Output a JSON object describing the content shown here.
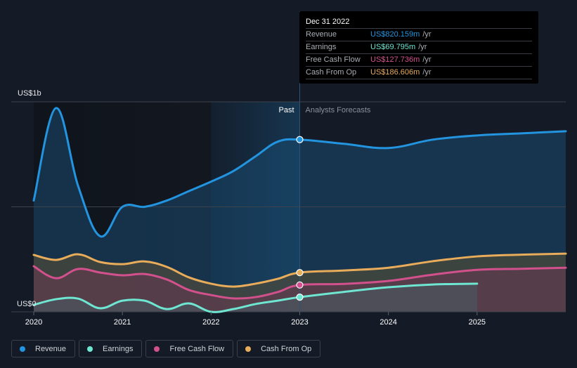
{
  "tooltip": {
    "date": "Dec 31 2022",
    "rows": [
      {
        "label": "Revenue",
        "value": "US$820.159m",
        "unit": "/yr",
        "color": "#2394df"
      },
      {
        "label": "Earnings",
        "value": "US$69.795m",
        "unit": "/yr",
        "color": "#6ee6d2"
      },
      {
        "label": "Free Cash Flow",
        "value": "US$127.736m",
        "unit": "/yr",
        "color": "#d2518c"
      },
      {
        "label": "Cash From Op",
        "value": "US$186.606m",
        "unit": "/yr",
        "color": "#e8ac5a"
      }
    ]
  },
  "legend": [
    {
      "label": "Revenue",
      "color": "#2394df"
    },
    {
      "label": "Earnings",
      "color": "#6ee6d2"
    },
    {
      "label": "Free Cash Flow",
      "color": "#d2518c"
    },
    {
      "label": "Cash From Op",
      "color": "#e8ac5a"
    }
  ],
  "chart_data": {
    "type": "area",
    "title": "",
    "xlabel": "",
    "ylabel": "",
    "y_tick_labels": {
      "top": "US$1b",
      "bottom": "US$0"
    },
    "ylim": [
      0,
      1000
    ],
    "y_unit": "US$m",
    "xlim": [
      2020,
      2026
    ],
    "x_ticks": [
      2020,
      2021,
      2022,
      2023,
      2024,
      2025
    ],
    "x_tick_labels": [
      "2020",
      "2021",
      "2022",
      "2023",
      "2024",
      "2025"
    ],
    "grid": true,
    "divider_x": 2023,
    "highlight_range": [
      2022,
      2023
    ],
    "region_labels": {
      "past": "Past",
      "forecast": "Analysts Forecasts"
    },
    "legend_position": "bottom-left",
    "series": [
      {
        "name": "Revenue",
        "color": "#2394df",
        "x": [
          2020,
          2020.25,
          2020.5,
          2020.75,
          2021,
          2021.25,
          2021.5,
          2021.75,
          2022,
          2022.25,
          2022.5,
          2022.75,
          2023,
          2023.5,
          2024,
          2024.5,
          2025,
          2025.5,
          2026
        ],
        "y": [
          530,
          970,
          600,
          360,
          500,
          500,
          530,
          575,
          620,
          670,
          740,
          810,
          820,
          800,
          780,
          820,
          840,
          850,
          860
        ]
      },
      {
        "name": "Earnings",
        "color": "#6ee6d2",
        "x": [
          2020,
          2020.25,
          2020.5,
          2020.75,
          2021,
          2021.25,
          2021.5,
          2021.75,
          2022,
          2022.25,
          2022.5,
          2022.75,
          2023,
          2023.5,
          2024,
          2024.5,
          2025
        ],
        "y": [
          33,
          60,
          63,
          17,
          53,
          53,
          13,
          40,
          0,
          13,
          37,
          53,
          70,
          95,
          117,
          130,
          134
        ]
      },
      {
        "name": "Free Cash Flow",
        "color": "#d2518c",
        "x": [
          2020,
          2020.25,
          2020.5,
          2020.75,
          2021,
          2021.25,
          2021.5,
          2021.75,
          2022,
          2022.25,
          2022.5,
          2022.75,
          2023,
          2023.5,
          2024,
          2024.5,
          2025,
          2025.5,
          2026
        ],
        "y": [
          217,
          160,
          204,
          187,
          174,
          180,
          154,
          104,
          80,
          64,
          70,
          94,
          128,
          133,
          147,
          177,
          200,
          205,
          210
        ]
      },
      {
        "name": "Cash From Op",
        "color": "#e8ac5a",
        "x": [
          2020,
          2020.25,
          2020.5,
          2020.75,
          2021,
          2021.25,
          2021.5,
          2021.75,
          2022,
          2022.25,
          2022.5,
          2022.75,
          2023,
          2023.5,
          2024,
          2024.5,
          2025,
          2025.5,
          2026
        ],
        "y": [
          271,
          247,
          274,
          237,
          227,
          240,
          214,
          164,
          134,
          120,
          134,
          157,
          187,
          197,
          210,
          241,
          264,
          272,
          277
        ]
      }
    ],
    "markers": [
      {
        "series": "Revenue",
        "x": 2023,
        "y": 820.159
      },
      {
        "series": "Earnings",
        "x": 2023,
        "y": 69.795
      },
      {
        "series": "Free Cash Flow",
        "x": 2023,
        "y": 127.736
      },
      {
        "series": "Cash From Op",
        "x": 2023,
        "y": 186.606
      }
    ]
  }
}
